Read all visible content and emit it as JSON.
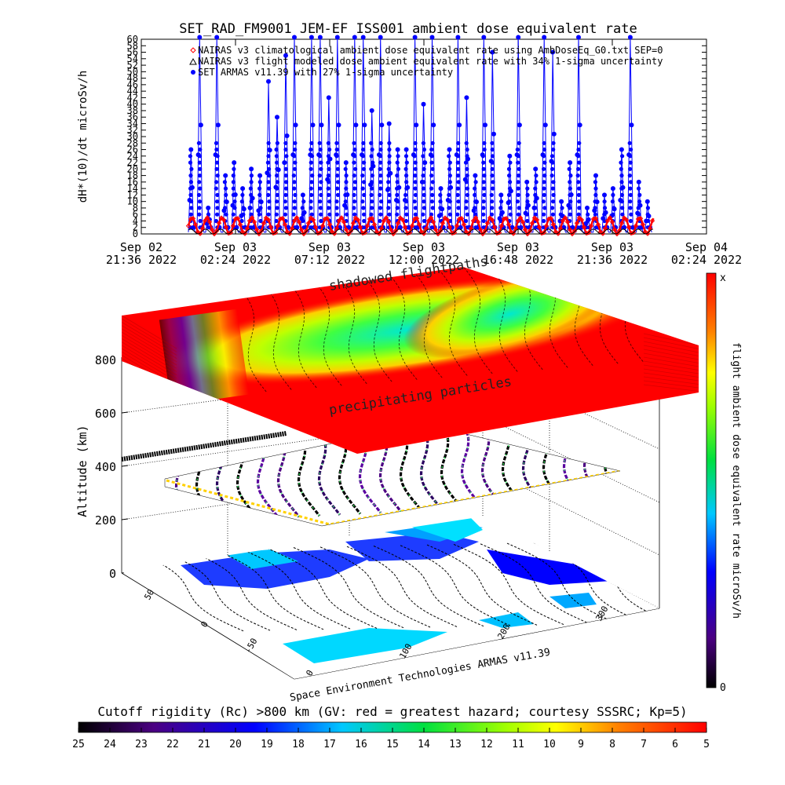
{
  "chart_data": [
    {
      "type": "line",
      "title": "SET_RAD_FM9001  JEM-EF ISS001 ambient dose equivalent rate",
      "ylabel": "dH*(10)/dt microSv/h",
      "ylim": [
        0,
        60
      ],
      "y_ticks": [
        0,
        2,
        4,
        6,
        8,
        10,
        12,
        14,
        16,
        18,
        20,
        22,
        24,
        26,
        28,
        30,
        32,
        34,
        36,
        38,
        40,
        42,
        44,
        46,
        48,
        50,
        52,
        54,
        56,
        58,
        60
      ],
      "x_ticks": [
        {
          "line1": "Sep 02",
          "line2": "21:36 2022"
        },
        {
          "line1": "Sep 03",
          "line2": "02:24 2022"
        },
        {
          "line1": "Sep 03",
          "line2": "07:12 2022"
        },
        {
          "line1": "Sep 03",
          "line2": "12:00 2022"
        },
        {
          "line1": "Sep 03",
          "line2": "16:48 2022"
        },
        {
          "line1": "Sep 03",
          "line2": "21:36 2022"
        },
        {
          "line1": "Sep 04",
          "line2": "02:24 2022"
        }
      ],
      "x_range_hours": [
        0,
        28.8
      ],
      "data_start_hour": 2.4,
      "data_end_hour": 26.1,
      "orbit_period_hours": 1.52,
      "series": [
        {
          "name": "NAIRAS v3 climatological ambient dose equivalent rate using AmbDoseEq_G0.txt SEP=0",
          "color": "#ff0000",
          "marker": "diamond",
          "amplitude": [
            0,
            5
          ]
        },
        {
          "name": "NAIRAS v3 flight modeled dose ambient equivalent rate with 34% 1-sigma uncertainty",
          "color": "#000000",
          "marker": "triangle",
          "amplitude": [
            0,
            1.5
          ]
        },
        {
          "name": "SET ARMAS v11.39 with 27% 1-sigma uncertainty",
          "color": "#0000ff",
          "marker": "circle",
          "spike_values": [
            26,
            61,
            8,
            61,
            18,
            22,
            14,
            20,
            18,
            47,
            36,
            55,
            61,
            12,
            61,
            61,
            42,
            61,
            22,
            61,
            61,
            38,
            61,
            34,
            26,
            26,
            61,
            40,
            61,
            14,
            26,
            61,
            42,
            18,
            61,
            56,
            12,
            24,
            61,
            16,
            20,
            61,
            56,
            10,
            22,
            61,
            8,
            18,
            12,
            14,
            26,
            61,
            16,
            10
          ]
        }
      ]
    },
    {
      "type": "surface",
      "zlabel": "Altitude (km)",
      "z_ticks": [
        "0",
        "200",
        "400",
        "600",
        "800"
      ],
      "lat_ticks": [
        "50",
        "0",
        "-50"
      ],
      "lon_ticks": [
        "0",
        "100",
        "200",
        "300"
      ],
      "annotations": [
        "shadowed flightpaths",
        "precipitating particles"
      ],
      "credit": "Space Environment Technologies ARMAS v11.39"
    }
  ],
  "colorbar_right": {
    "label": "flight ambient dose equivalent rate microSv/h",
    "top": "x",
    "bottom": "0"
  },
  "colorbar_bottom": {
    "title": "Cutoff rigidity (Rc) >800 km (GV: red = greatest hazard; courtesy SSSRC; Kp=5)",
    "ticks": [
      "25",
      "24",
      "23",
      "22",
      "21",
      "20",
      "19",
      "18",
      "17",
      "16",
      "15",
      "14",
      "13",
      "12",
      "11",
      "10",
      "9",
      "8",
      "7",
      "6",
      "5"
    ]
  },
  "colors": {
    "nairas_clim": "#ff0000",
    "armas": "#0000ff",
    "bg": "#ffffff"
  }
}
